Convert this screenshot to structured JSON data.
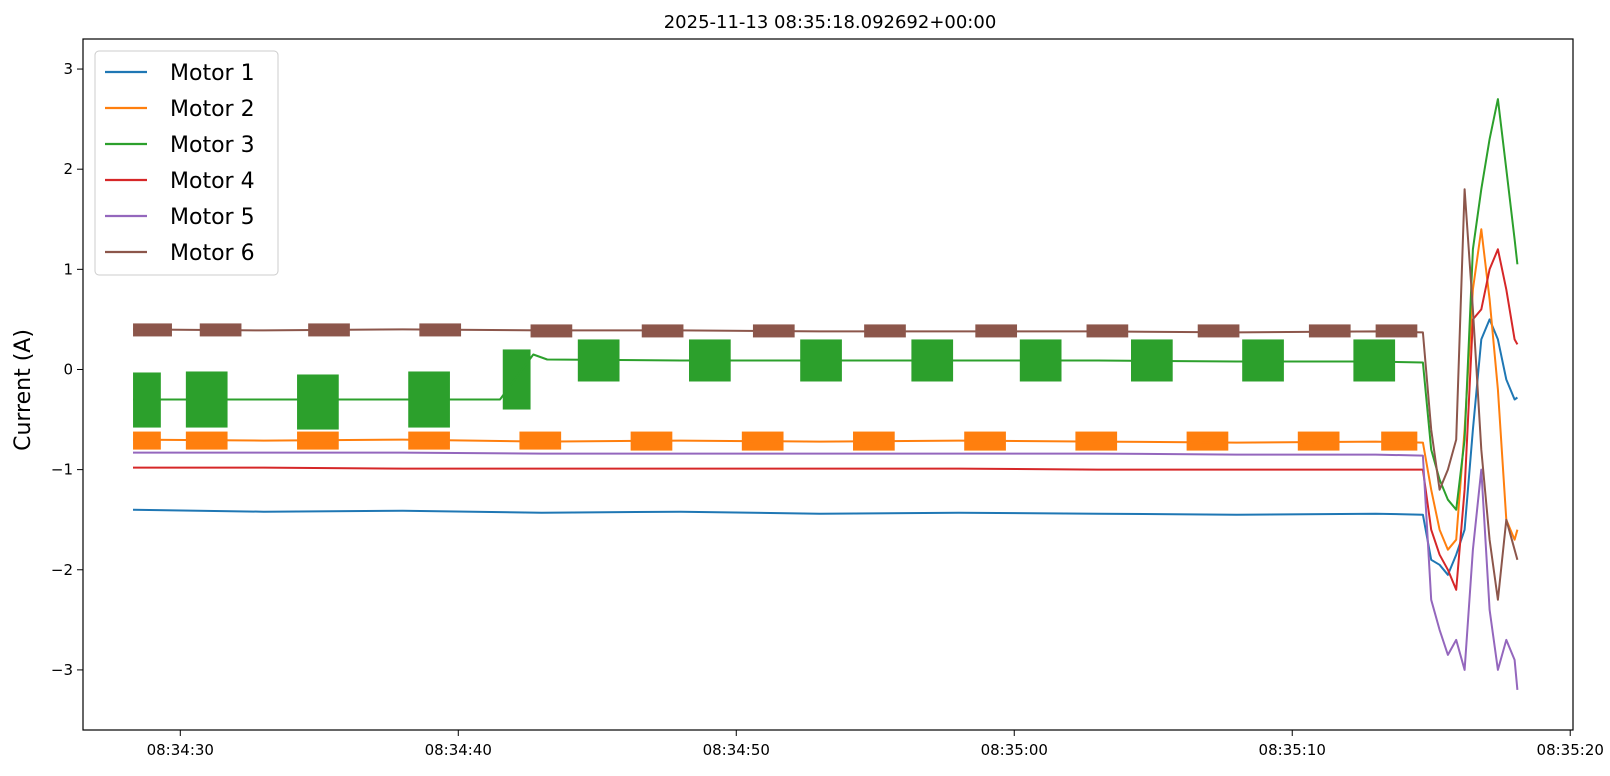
{
  "chart_data": {
    "type": "line",
    "title": "2025-11-13 08:35:18.092692+00:00",
    "xlabel": "",
    "ylabel": "Current (A)",
    "x_unit": "time (HH:MM:SS)",
    "xlim": [
      "08:34:26.5",
      "08:35:20.1"
    ],
    "ylim": [
      -3.6,
      3.3
    ],
    "x_ticks": [
      "08:34:30",
      "08:34:40",
      "08:34:50",
      "08:35:00",
      "08:35:10",
      "08:35:20"
    ],
    "y_ticks": [
      -3,
      -2,
      -1,
      0,
      1,
      2,
      3
    ],
    "y_tick_labels": [
      "−3",
      "−2",
      "−1",
      "0",
      "1",
      "2",
      "3"
    ],
    "grid": false,
    "legend_position": "top-left",
    "series": [
      {
        "name": "Motor 1",
        "color": "#1f77b4",
        "x": [
          "08:34:28.3",
          "08:34:33.0",
          "08:34:38.0",
          "08:34:43.0",
          "08:34:48.0",
          "08:34:53.0",
          "08:34:58.0",
          "08:35:03.0",
          "08:35:08.0",
          "08:35:13.0",
          "08:35:14.7",
          "08:35:15.0",
          "08:35:15.3",
          "08:35:15.6",
          "08:35:15.9",
          "08:35:16.2",
          "08:35:16.5",
          "08:35:16.8",
          "08:35:17.1",
          "08:35:17.4",
          "08:35:17.7",
          "08:35:18.0",
          "08:35:18.1"
        ],
        "y": [
          -1.4,
          -1.42,
          -1.41,
          -1.43,
          -1.42,
          -1.44,
          -1.43,
          -1.44,
          -1.45,
          -1.44,
          -1.45,
          -1.9,
          -1.95,
          -2.05,
          -1.85,
          -1.6,
          -0.6,
          0.3,
          0.5,
          0.3,
          -0.1,
          -0.3,
          -0.28
        ]
      },
      {
        "name": "Motor 2",
        "color": "#ff7f0e",
        "x": [
          "08:34:28.3",
          "08:34:33.0",
          "08:34:38.0",
          "08:34:43.0",
          "08:34:48.0",
          "08:34:53.0",
          "08:34:58.0",
          "08:35:03.0",
          "08:35:08.0",
          "08:35:13.0",
          "08:35:14.7",
          "08:35:15.0",
          "08:35:15.3",
          "08:35:15.6",
          "08:35:15.9",
          "08:35:16.2",
          "08:35:16.5",
          "08:35:16.8",
          "08:35:17.1",
          "08:35:17.4",
          "08:35:17.7",
          "08:35:18.0",
          "08:35:18.1"
        ],
        "y": [
          -0.7,
          -0.71,
          -0.7,
          -0.72,
          -0.71,
          -0.72,
          -0.71,
          -0.72,
          -0.73,
          -0.72,
          -0.73,
          -1.2,
          -1.6,
          -1.8,
          -1.7,
          -0.6,
          0.8,
          1.4,
          0.7,
          -0.2,
          -1.5,
          -1.7,
          -1.6
        ]
      },
      {
        "name": "Motor 3",
        "color": "#2ca02c",
        "x": [
          "08:34:28.3",
          "08:34:33.0",
          "08:34:38.0",
          "08:34:41.5",
          "08:34:42.7",
          "08:34:43.2",
          "08:34:48.0",
          "08:34:53.0",
          "08:34:58.0",
          "08:35:03.0",
          "08:35:08.0",
          "08:35:13.0",
          "08:35:14.7",
          "08:35:15.0",
          "08:35:15.3",
          "08:35:15.6",
          "08:35:15.9",
          "08:35:16.2",
          "08:35:16.5",
          "08:35:16.8",
          "08:35:17.1",
          "08:35:17.4",
          "08:35:17.7",
          "08:35:18.0",
          "08:35:18.1"
        ],
        "y": [
          -0.3,
          -0.3,
          -0.3,
          -0.3,
          0.15,
          0.1,
          0.09,
          0.09,
          0.09,
          0.09,
          0.08,
          0.08,
          0.07,
          -0.8,
          -1.1,
          -1.3,
          -1.4,
          -0.7,
          1.2,
          1.8,
          2.3,
          2.7,
          2.0,
          1.3,
          1.05
        ]
      },
      {
        "name": "Motor 4",
        "color": "#d62728",
        "x": [
          "08:34:28.3",
          "08:34:33.0",
          "08:34:38.0",
          "08:34:43.0",
          "08:34:48.0",
          "08:34:53.0",
          "08:34:58.0",
          "08:35:03.0",
          "08:35:08.0",
          "08:35:13.0",
          "08:35:14.7",
          "08:35:15.0",
          "08:35:15.3",
          "08:35:15.6",
          "08:35:15.9",
          "08:35:16.2",
          "08:35:16.5",
          "08:35:16.8",
          "08:35:17.1",
          "08:35:17.4",
          "08:35:17.7",
          "08:35:18.0",
          "08:35:18.1"
        ],
        "y": [
          -0.98,
          -0.98,
          -0.99,
          -0.99,
          -0.99,
          -0.99,
          -0.99,
          -1.0,
          -1.0,
          -1.0,
          -1.0,
          -1.6,
          -1.85,
          -2.0,
          -2.2,
          -1.2,
          0.5,
          0.6,
          1.0,
          1.2,
          0.8,
          0.3,
          0.25
        ]
      },
      {
        "name": "Motor 5",
        "color": "#9467bd",
        "x": [
          "08:34:28.3",
          "08:34:33.0",
          "08:34:38.0",
          "08:34:43.0",
          "08:34:48.0",
          "08:34:53.0",
          "08:34:58.0",
          "08:35:03.0",
          "08:35:08.0",
          "08:35:13.0",
          "08:35:14.7",
          "08:35:15.0",
          "08:35:15.3",
          "08:35:15.6",
          "08:35:15.9",
          "08:35:16.2",
          "08:35:16.5",
          "08:35:16.8",
          "08:35:17.1",
          "08:35:17.4",
          "08:35:17.7",
          "08:35:18.0",
          "08:35:18.1"
        ],
        "y": [
          -0.83,
          -0.83,
          -0.83,
          -0.84,
          -0.84,
          -0.84,
          -0.84,
          -0.84,
          -0.85,
          -0.85,
          -0.86,
          -2.3,
          -2.6,
          -2.85,
          -2.7,
          -3.0,
          -1.8,
          -1.0,
          -2.4,
          -3.0,
          -2.7,
          -2.9,
          -3.2
        ]
      },
      {
        "name": "Motor 6",
        "color": "#8c564b",
        "x": [
          "08:34:28.3",
          "08:34:33.0",
          "08:34:38.0",
          "08:34:43.0",
          "08:34:48.0",
          "08:34:53.0",
          "08:34:58.0",
          "08:35:03.0",
          "08:35:08.0",
          "08:35:13.0",
          "08:35:14.7",
          "08:35:15.0",
          "08:35:15.3",
          "08:35:15.6",
          "08:35:15.9",
          "08:35:16.2",
          "08:35:16.5",
          "08:35:16.8",
          "08:35:17.1",
          "08:35:17.4",
          "08:35:17.7",
          "08:35:18.0",
          "08:35:18.1"
        ],
        "y": [
          0.4,
          0.39,
          0.4,
          0.39,
          0.39,
          0.38,
          0.38,
          0.38,
          0.37,
          0.38,
          0.37,
          -0.6,
          -1.2,
          -1.0,
          -0.7,
          1.8,
          0.6,
          -0.8,
          -1.7,
          -2.3,
          -1.5,
          -1.8,
          -1.9
        ]
      }
    ],
    "oscillation_bands": {
      "Motor 3": [
        {
          "start": "08:34:28.3",
          "end": "08:34:29.3",
          "low": -0.58,
          "high": -0.03
        },
        {
          "start": "08:34:30.2",
          "end": "08:34:31.7",
          "low": -0.58,
          "high": -0.02
        },
        {
          "start": "08:34:34.2",
          "end": "08:34:35.7",
          "low": -0.6,
          "high": -0.05
        },
        {
          "start": "08:34:38.2",
          "end": "08:34:39.7",
          "low": -0.58,
          "high": -0.02
        },
        {
          "start": "08:34:41.6",
          "end": "08:34:42.6",
          "low": -0.4,
          "high": 0.2
        },
        {
          "start": "08:34:44.3",
          "end": "08:34:45.8",
          "low": -0.12,
          "high": 0.3
        },
        {
          "start": "08:34:48.3",
          "end": "08:34:49.8",
          "low": -0.12,
          "high": 0.3
        },
        {
          "start": "08:34:52.3",
          "end": "08:34:53.8",
          "low": -0.12,
          "high": 0.3
        },
        {
          "start": "08:34:56.3",
          "end": "08:34:57.8",
          "low": -0.12,
          "high": 0.3
        },
        {
          "start": "08:35:00.2",
          "end": "08:35:01.7",
          "low": -0.12,
          "high": 0.3
        },
        {
          "start": "08:35:04.2",
          "end": "08:35:05.7",
          "low": -0.12,
          "high": 0.3
        },
        {
          "start": "08:35:08.2",
          "end": "08:35:09.7",
          "low": -0.12,
          "high": 0.3
        },
        {
          "start": "08:35:12.2",
          "end": "08:35:13.7",
          "low": -0.12,
          "high": 0.3
        }
      ],
      "Motor 2": [
        {
          "start": "08:34:28.3",
          "end": "08:34:29.3",
          "low": -0.8,
          "high": -0.62
        },
        {
          "start": "08:34:30.2",
          "end": "08:34:31.7",
          "low": -0.8,
          "high": -0.62
        },
        {
          "start": "08:34:34.2",
          "end": "08:34:35.7",
          "low": -0.8,
          "high": -0.62
        },
        {
          "start": "08:34:38.2",
          "end": "08:34:39.7",
          "low": -0.8,
          "high": -0.62
        },
        {
          "start": "08:34:42.2",
          "end": "08:34:43.7",
          "low": -0.8,
          "high": -0.62
        },
        {
          "start": "08:34:46.2",
          "end": "08:34:47.7",
          "low": -0.81,
          "high": -0.62
        },
        {
          "start": "08:34:50.2",
          "end": "08:34:51.7",
          "low": -0.81,
          "high": -0.62
        },
        {
          "start": "08:34:54.2",
          "end": "08:34:55.7",
          "low": -0.81,
          "high": -0.62
        },
        {
          "start": "08:34:58.2",
          "end": "08:34:59.7",
          "low": -0.81,
          "high": -0.62
        },
        {
          "start": "08:35:02.2",
          "end": "08:35:03.7",
          "low": -0.81,
          "high": -0.62
        },
        {
          "start": "08:35:06.2",
          "end": "08:35:07.7",
          "low": -0.81,
          "high": -0.62
        },
        {
          "start": "08:35:10.2",
          "end": "08:35:11.7",
          "low": -0.81,
          "high": -0.62
        },
        {
          "start": "08:35:13.2",
          "end": "08:35:14.5",
          "low": -0.81,
          "high": -0.62
        }
      ],
      "Motor 6": [
        {
          "start": "08:34:28.3",
          "end": "08:34:29.7",
          "low": 0.33,
          "high": 0.46
        },
        {
          "start": "08:34:30.7",
          "end": "08:34:32.2",
          "low": 0.33,
          "high": 0.46
        },
        {
          "start": "08:34:34.6",
          "end": "08:34:36.1",
          "low": 0.33,
          "high": 0.46
        },
        {
          "start": "08:34:38.6",
          "end": "08:34:40.1",
          "low": 0.33,
          "high": 0.46
        },
        {
          "start": "08:34:42.6",
          "end": "08:34:44.1",
          "low": 0.32,
          "high": 0.45
        },
        {
          "start": "08:34:46.6",
          "end": "08:34:48.1",
          "low": 0.32,
          "high": 0.45
        },
        {
          "start": "08:34:50.6",
          "end": "08:34:52.1",
          "low": 0.32,
          "high": 0.45
        },
        {
          "start": "08:34:54.6",
          "end": "08:34:56.1",
          "low": 0.32,
          "high": 0.45
        },
        {
          "start": "08:34:58.6",
          "end": "08:35:00.1",
          "low": 0.32,
          "high": 0.45
        },
        {
          "start": "08:35:02.6",
          "end": "08:35:04.1",
          "low": 0.32,
          "high": 0.45
        },
        {
          "start": "08:35:06.6",
          "end": "08:35:08.1",
          "low": 0.32,
          "high": 0.45
        },
        {
          "start": "08:35:10.6",
          "end": "08:35:12.1",
          "low": 0.32,
          "high": 0.45
        },
        {
          "start": "08:35:13.0",
          "end": "08:35:14.5",
          "low": 0.32,
          "high": 0.45
        }
      ]
    }
  }
}
